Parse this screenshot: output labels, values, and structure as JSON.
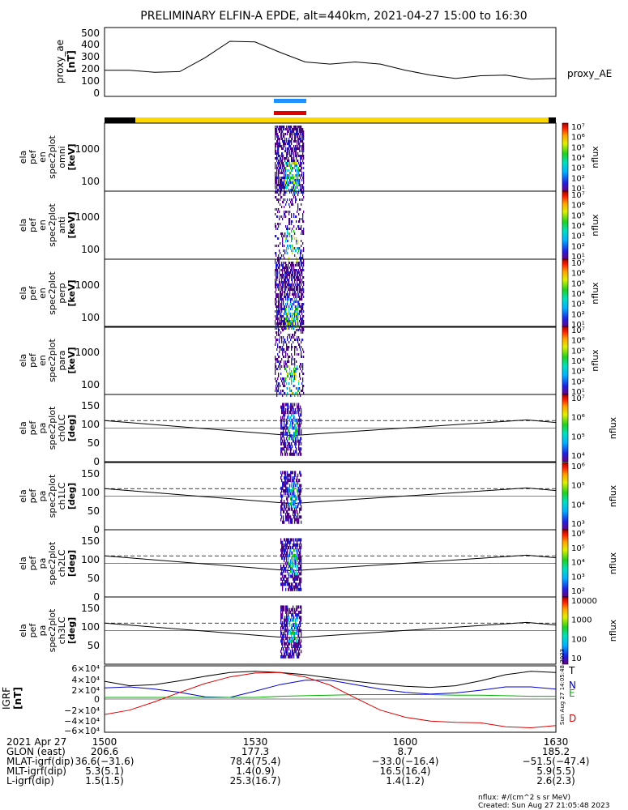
{
  "title": "PRELIMINARY ELFIN-A EPDE, alt=440km, 2021-04-27 15:00 to 16:30",
  "colors": {
    "bar_blue": "#1e90ff",
    "bar_red": "#e00000",
    "bar_yellow": "#ffd700",
    "bar_black": "#000000",
    "x_comp": "#000000",
    "n_comp": "#0000cc",
    "e_comp": "#00b000",
    "d_comp": "#dd0000"
  },
  "ae_panel": {
    "ylabel": [
      "proxy_ae",
      "[nT]"
    ],
    "yticks": [
      "500",
      "400",
      "300",
      "200",
      "100",
      "0"
    ],
    "legend": "proxy_AE"
  },
  "spec_panels": [
    {
      "ylabel": [
        "ela",
        "pef",
        "en",
        "spec2plot",
        "omni",
        "[keV]"
      ],
      "yticks": [
        "1000",
        "100"
      ],
      "cbar_unit": "nflux",
      "cbar_ticks": [
        "10⁷",
        "10⁶",
        "10⁵",
        "10⁴",
        "10³",
        "10²",
        "10¹"
      ]
    },
    {
      "ylabel": [
        "ela",
        "pef",
        "en",
        "spec2plot",
        "anti",
        "[keV]"
      ],
      "yticks": [
        "1000",
        "100"
      ],
      "cbar_unit": "nflux",
      "cbar_ticks": [
        "10⁷",
        "10⁶",
        "10⁵",
        "10⁴",
        "10³",
        "10²",
        "10¹"
      ]
    },
    {
      "ylabel": [
        "ela",
        "pef",
        "en",
        "spec2plot",
        "perp",
        "[keV]"
      ],
      "yticks": [
        "1000",
        "100"
      ],
      "cbar_unit": "nflux",
      "cbar_ticks": [
        "10⁷",
        "10⁶",
        "10⁵",
        "10⁴",
        "10³",
        "10²",
        "10¹"
      ]
    },
    {
      "ylabel": [
        "ela",
        "pef",
        "en",
        "spec2plot",
        "para",
        "[keV]"
      ],
      "yticks": [
        "1000",
        "100"
      ],
      "cbar_unit": "nflux",
      "cbar_ticks": [
        "10⁷",
        "10⁶",
        "10⁵",
        "10⁴",
        "10³",
        "10²",
        "10¹"
      ]
    }
  ],
  "pa_panels": [
    {
      "ylabel": [
        "ela",
        "pef",
        "pa",
        "spec2plot",
        "ch0LC",
        "[deg]"
      ],
      "yticks": [
        "150",
        "100",
        "50",
        "0"
      ],
      "cbar_unit": "nflux",
      "cbar_ticks": [
        "10⁷",
        "10⁶",
        "10⁵",
        "10⁴"
      ]
    },
    {
      "ylabel": [
        "ela",
        "pef",
        "pa",
        "spec2plot",
        "ch1LC",
        "[deg]"
      ],
      "yticks": [
        "150",
        "100",
        "50",
        "0"
      ],
      "cbar_unit": "nflux",
      "cbar_ticks": [
        "10⁶",
        "10⁵",
        "10⁴",
        "10³"
      ]
    },
    {
      "ylabel": [
        "ela",
        "pef",
        "pa",
        "spec2plot",
        "ch2LC",
        "[deg]"
      ],
      "yticks": [
        "150",
        "100",
        "50",
        "0"
      ],
      "cbar_unit": "nflux",
      "cbar_ticks": [
        "10⁶",
        "10⁵",
        "10⁴",
        "10³",
        "10²"
      ]
    },
    {
      "ylabel": [
        "ela",
        "pef",
        "pa",
        "spec2plot",
        "ch3LC",
        "[deg]"
      ],
      "yticks": [
        "150",
        "100",
        "50"
      ],
      "cbar_unit": "nflux",
      "cbar_ticks": [
        "10000",
        "1000",
        "100",
        "10"
      ]
    }
  ],
  "igrf_panel": {
    "ylabel": [
      "IGRF",
      "[nT]"
    ],
    "yticks": [
      "6×10⁴",
      "4×10⁴",
      "2×10⁴",
      "0",
      "−2×10⁴",
      "−4×10⁴",
      "−6×10⁴"
    ],
    "component_labels": [
      "T",
      "N",
      "E",
      "D"
    ]
  },
  "side_stamp": "Sun Aug 27 14:05:48 2023",
  "x_axis": {
    "ticks": [
      "1500",
      "1530",
      "1600",
      "1630"
    ],
    "row_labels": [
      "2021 Apr 27",
      "GLON (east)",
      "MLAT-igrf(dip)",
      "MLT-igrf(dip)",
      "L-igrf(dip)"
    ],
    "rows": [
      [
        "1500",
        "1530",
        "1600",
        "1630"
      ],
      [
        "206.6",
        "177.3",
        "8.7",
        "185.2"
      ],
      [
        "36.6(−31.6)",
        "78.4(75.4)",
        "−33.0(−16.4)",
        "−51.5(−47.4)"
      ],
      [
        "5.3(5.1)",
        "1.4(0.9)",
        "16.5(16.4)",
        "5.9(5.5)"
      ],
      [
        "1.5(1.5)",
        "25.3(16.7)",
        "1.4(1.2)",
        "2.6(2.3)"
      ]
    ]
  },
  "footer": {
    "units": "nflux: #/(cm^2 s sr MeV)",
    "created": "Created: Sun Aug 27 21:05:48 2023"
  },
  "chart_data": [
    {
      "type": "line",
      "ylabel": "proxy_ae [nT]",
      "ylim": [
        0,
        500
      ],
      "x": [
        "1500",
        "1505",
        "1510",
        "1515",
        "1520",
        "1525",
        "1530",
        "1535",
        "1540",
        "1545",
        "1550",
        "1555",
        "1600",
        "1605",
        "1610",
        "1615",
        "1620",
        "1625",
        "1630"
      ],
      "series": [
        {
          "name": "proxy_AE",
          "values": [
            190,
            190,
            175,
            180,
            280,
            400,
            395,
            320,
            250,
            235,
            250,
            235,
            190,
            155,
            130,
            150,
            155,
            125,
            130
          ]
        }
      ]
    },
    {
      "type": "line",
      "ylabel": "IGRF [nT]",
      "ylim": [
        -60000,
        60000
      ],
      "x": [
        "1500",
        "1505",
        "1510",
        "1515",
        "1520",
        "1525",
        "1530",
        "1535",
        "1540",
        "1545",
        "1550",
        "1555",
        "1600",
        "1605",
        "1610",
        "1615",
        "1620",
        "1625",
        "1630"
      ],
      "series": [
        {
          "name": "T",
          "values": [
            32000,
            24000,
            26000,
            33000,
            41000,
            48000,
            50000,
            48000,
            44000,
            38000,
            32000,
            27000,
            23000,
            21000,
            24000,
            33000,
            44000,
            50000,
            48000
          ]
        },
        {
          "name": "N",
          "values": [
            20000,
            22000,
            18000,
            12000,
            4000,
            3000,
            14000,
            26000,
            34000,
            34000,
            26000,
            18000,
            12000,
            9000,
            11000,
            16000,
            22000,
            22000,
            18000
          ]
        },
        {
          "name": "E",
          "values": [
            3000,
            3000,
            3000,
            3000,
            3000,
            3000,
            3000,
            5000,
            6000,
            7000,
            8000,
            8000,
            8000,
            8000,
            7000,
            7000,
            6000,
            5000,
            5000
          ]
        },
        {
          "name": "D",
          "values": [
            -28000,
            -20000,
            -5000,
            12000,
            28000,
            40000,
            47000,
            48000,
            40000,
            25000,
            2000,
            -20000,
            -33000,
            -40000,
            -42000,
            -43000,
            -50000,
            -52000,
            -48000
          ]
        }
      ]
    }
  ]
}
